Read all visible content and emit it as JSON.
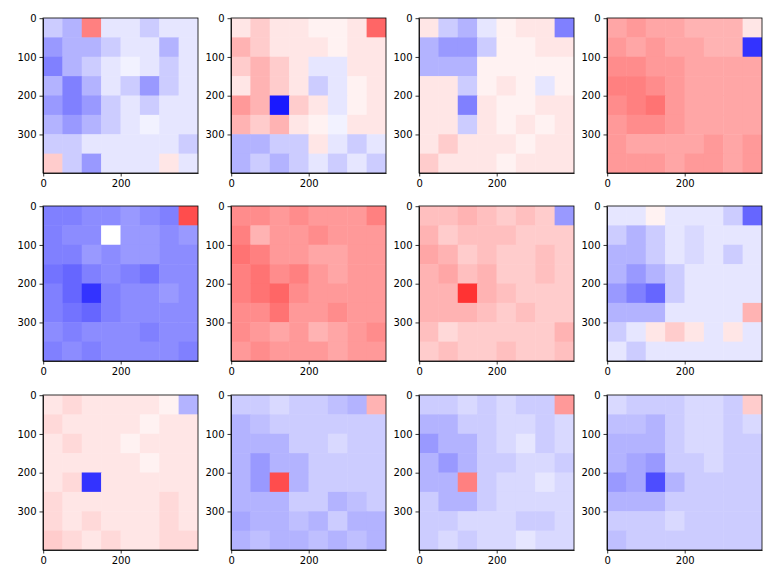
{
  "chart_data": [
    {
      "type": "heatmap",
      "xlim": [
        -0.5,
        399.5
      ],
      "ylim": [
        399.5,
        -0.5
      ],
      "xticks": [
        0,
        200
      ],
      "yticks": [
        0,
        100,
        200,
        300
      ],
      "zlim": [
        -1,
        1
      ],
      "cells": [
        [
          -0.2,
          -0.3,
          0.5,
          -0.1,
          -0.1,
          -0.2,
          -0.1,
          -0.1
        ],
        [
          -0.4,
          -0.3,
          -0.3,
          -0.2,
          -0.1,
          -0.1,
          -0.3,
          -0.1
        ],
        [
          -0.5,
          -0.3,
          -0.2,
          -0.1,
          -0.05,
          -0.1,
          -0.2,
          -0.1
        ],
        [
          -0.3,
          -0.5,
          -0.3,
          -0.1,
          -0.2,
          -0.4,
          -0.2,
          -0.1
        ],
        [
          -0.4,
          -0.5,
          -0.4,
          -0.2,
          -0.1,
          -0.2,
          -0.1,
          -0.1
        ],
        [
          -0.3,
          -0.4,
          -0.3,
          -0.2,
          -0.1,
          -0.05,
          -0.1,
          -0.1
        ],
        [
          -0.2,
          -0.2,
          -0.1,
          -0.1,
          -0.1,
          -0.1,
          -0.1,
          -0.2
        ],
        [
          0.2,
          -0.2,
          -0.4,
          -0.1,
          -0.1,
          -0.1,
          0.1,
          -0.1
        ]
      ]
    },
    {
      "type": "heatmap",
      "xlim": [
        -0.5,
        399.5
      ],
      "ylim": [
        399.5,
        -0.5
      ],
      "xticks": [
        0,
        200
      ],
      "yticks": [
        0,
        100,
        200,
        300
      ],
      "zlim": [
        -1,
        1
      ],
      "cells": [
        [
          0.1,
          0.2,
          0.1,
          0.1,
          0.05,
          0.05,
          0.1,
          0.6
        ],
        [
          0.3,
          0.2,
          0.1,
          0.1,
          0.1,
          0.05,
          0.1,
          0.1
        ],
        [
          0.2,
          0.3,
          0.2,
          0.1,
          -0.1,
          -0.1,
          0.1,
          0.1
        ],
        [
          0.1,
          0.3,
          0.2,
          0.1,
          -0.2,
          -0.1,
          0.05,
          0.1
        ],
        [
          0.4,
          0.3,
          -0.9,
          0.2,
          0.1,
          -0.1,
          0.05,
          0.1
        ],
        [
          0.3,
          0.2,
          0.3,
          0.1,
          0.05,
          -0.05,
          0.1,
          0.1
        ],
        [
          -0.3,
          -0.3,
          -0.2,
          -0.2,
          0.1,
          -0.1,
          -0.2,
          -0.1
        ],
        [
          -0.3,
          -0.2,
          -0.3,
          -0.2,
          -0.1,
          -0.2,
          -0.1,
          -0.2
        ]
      ]
    },
    {
      "type": "heatmap",
      "xlim": [
        -0.5,
        399.5
      ],
      "ylim": [
        399.5,
        -0.5
      ],
      "xticks": [
        0,
        200
      ],
      "yticks": [
        0,
        100,
        200,
        300
      ],
      "zlim": [
        -1,
        1
      ],
      "cells": [
        [
          0.1,
          -0.2,
          -0.3,
          -0.1,
          0.05,
          0.1,
          0.1,
          -0.5
        ],
        [
          -0.3,
          -0.4,
          -0.4,
          -0.2,
          0.05,
          0.05,
          0.1,
          0.1
        ],
        [
          -0.3,
          -0.3,
          -0.3,
          0.05,
          0.05,
          0.05,
          0.05,
          0.05
        ],
        [
          0.1,
          0.1,
          -0.2,
          0.05,
          0.1,
          0.05,
          -0.1,
          0.05
        ],
        [
          0.1,
          0.1,
          -0.5,
          0.1,
          0.05,
          0.05,
          0.1,
          0.1
        ],
        [
          0.1,
          0.1,
          -0.2,
          0.1,
          0.05,
          0.1,
          0.05,
          0.1
        ],
        [
          0.1,
          0.2,
          0.1,
          0.1,
          0.1,
          0.05,
          0.1,
          0.1
        ],
        [
          0.2,
          0.1,
          0.1,
          0.1,
          0.05,
          0.1,
          0.1,
          0.1
        ]
      ]
    },
    {
      "type": "heatmap",
      "xlim": [
        -0.5,
        399.5
      ],
      "ylim": [
        399.5,
        -0.5
      ],
      "xticks": [
        0,
        200
      ],
      "yticks": [
        0,
        100,
        200,
        300
      ],
      "zlim": [
        -1,
        1
      ],
      "cells": [
        [
          0.35,
          0.4,
          0.35,
          0.35,
          0.3,
          0.3,
          0.3,
          0.1
        ],
        [
          0.4,
          0.35,
          0.4,
          0.35,
          0.35,
          0.3,
          0.3,
          -0.8
        ],
        [
          0.45,
          0.45,
          0.4,
          0.4,
          0.35,
          0.35,
          0.35,
          0.35
        ],
        [
          0.5,
          0.5,
          0.45,
          0.4,
          0.35,
          0.35,
          0.35,
          0.35
        ],
        [
          0.45,
          0.5,
          0.55,
          0.4,
          0.35,
          0.35,
          0.35,
          0.35
        ],
        [
          0.4,
          0.45,
          0.45,
          0.4,
          0.35,
          0.35,
          0.35,
          0.35
        ],
        [
          0.4,
          0.35,
          0.35,
          0.35,
          0.35,
          0.4,
          0.35,
          0.4
        ],
        [
          0.4,
          0.4,
          0.4,
          0.35,
          0.4,
          0.4,
          0.35,
          0.4
        ]
      ]
    },
    {
      "type": "heatmap",
      "xlim": [
        -0.5,
        399.5
      ],
      "ylim": [
        399.5,
        -0.5
      ],
      "xticks": [
        0,
        200
      ],
      "yticks": [
        0,
        100,
        200,
        300
      ],
      "zlim": [
        -1,
        1
      ],
      "cells": [
        [
          -0.5,
          -0.5,
          -0.45,
          -0.45,
          -0.4,
          -0.45,
          -0.5,
          0.7
        ],
        [
          -0.5,
          -0.45,
          -0.45,
          0.0,
          -0.4,
          -0.4,
          -0.45,
          -0.4
        ],
        [
          -0.5,
          -0.5,
          -0.4,
          -0.45,
          -0.4,
          -0.4,
          -0.45,
          -0.45
        ],
        [
          -0.55,
          -0.6,
          -0.5,
          -0.45,
          -0.5,
          -0.55,
          -0.45,
          -0.45
        ],
        [
          -0.5,
          -0.6,
          -0.8,
          -0.5,
          -0.45,
          -0.45,
          -0.4,
          -0.45
        ],
        [
          -0.5,
          -0.55,
          -0.6,
          -0.5,
          -0.45,
          -0.45,
          -0.45,
          -0.45
        ],
        [
          -0.45,
          -0.5,
          -0.45,
          -0.45,
          -0.45,
          -0.5,
          -0.45,
          -0.45
        ],
        [
          -0.5,
          -0.45,
          -0.5,
          -0.45,
          -0.45,
          -0.45,
          -0.45,
          -0.5
        ]
      ]
    },
    {
      "type": "heatmap",
      "xlim": [
        -0.5,
        399.5
      ],
      "ylim": [
        399.5,
        -0.5
      ],
      "xticks": [
        0,
        200
      ],
      "yticks": [
        0,
        100,
        200,
        300
      ],
      "zlim": [
        -1,
        1
      ],
      "cells": [
        [
          0.45,
          0.45,
          0.4,
          0.45,
          0.4,
          0.4,
          0.4,
          0.5
        ],
        [
          0.5,
          0.3,
          0.4,
          0.4,
          0.45,
          0.4,
          0.4,
          0.4
        ],
        [
          0.55,
          0.5,
          0.4,
          0.4,
          0.35,
          0.35,
          0.4,
          0.4
        ],
        [
          0.5,
          0.55,
          0.45,
          0.5,
          0.4,
          0.35,
          0.4,
          0.4
        ],
        [
          0.5,
          0.55,
          0.6,
          0.45,
          0.4,
          0.4,
          0.4,
          0.4
        ],
        [
          0.45,
          0.45,
          0.55,
          0.4,
          0.4,
          0.45,
          0.4,
          0.4
        ],
        [
          0.45,
          0.4,
          0.35,
          0.4,
          0.3,
          0.35,
          0.4,
          0.45
        ],
        [
          0.4,
          0.45,
          0.4,
          0.4,
          0.4,
          0.35,
          0.4,
          0.4
        ]
      ]
    },
    {
      "type": "heatmap",
      "xlim": [
        -0.5,
        399.5
      ],
      "ylim": [
        399.5,
        -0.5
      ],
      "xticks": [
        0,
        200
      ],
      "yticks": [
        0,
        100,
        200,
        300
      ],
      "zlim": [
        -1,
        1
      ],
      "cells": [
        [
          0.25,
          0.25,
          0.3,
          0.25,
          0.2,
          0.25,
          0.2,
          -0.4
        ],
        [
          0.3,
          0.2,
          0.25,
          0.25,
          0.25,
          0.2,
          0.2,
          0.2
        ],
        [
          0.35,
          0.3,
          0.2,
          0.25,
          0.2,
          0.2,
          0.25,
          0.2
        ],
        [
          0.3,
          0.35,
          0.25,
          0.3,
          0.2,
          0.2,
          0.25,
          0.2
        ],
        [
          0.3,
          0.3,
          0.8,
          0.3,
          0.25,
          0.2,
          0.2,
          0.2
        ],
        [
          0.3,
          0.3,
          0.3,
          0.25,
          0.2,
          0.25,
          0.2,
          0.2
        ],
        [
          0.25,
          0.15,
          0.2,
          0.2,
          0.2,
          0.2,
          0.2,
          0.3
        ],
        [
          0.2,
          0.25,
          0.2,
          0.2,
          0.25,
          0.2,
          0.2,
          0.25
        ]
      ]
    },
    {
      "type": "heatmap",
      "xlim": [
        -0.5,
        399.5
      ],
      "ylim": [
        399.5,
        -0.5
      ],
      "xticks": [
        0,
        200
      ],
      "yticks": [
        0,
        100,
        200,
        300
      ],
      "zlim": [
        -1,
        1
      ],
      "cells": [
        [
          -0.1,
          -0.1,
          0.05,
          -0.1,
          -0.1,
          -0.1,
          -0.2,
          -0.6
        ],
        [
          -0.2,
          -0.3,
          -0.2,
          -0.1,
          -0.15,
          -0.1,
          -0.1,
          -0.1
        ],
        [
          -0.3,
          -0.3,
          -0.2,
          -0.1,
          -0.15,
          -0.1,
          -0.2,
          -0.1
        ],
        [
          -0.3,
          -0.4,
          -0.3,
          -0.2,
          -0.1,
          -0.1,
          -0.1,
          -0.1
        ],
        [
          -0.4,
          -0.5,
          -0.6,
          -0.2,
          -0.1,
          -0.1,
          -0.1,
          -0.1
        ],
        [
          -0.3,
          -0.3,
          -0.3,
          -0.1,
          -0.1,
          -0.1,
          -0.1,
          0.3
        ],
        [
          -0.2,
          -0.1,
          0.1,
          0.2,
          0.1,
          -0.1,
          0.1,
          -0.1
        ],
        [
          -0.1,
          -0.2,
          -0.1,
          -0.1,
          -0.1,
          -0.1,
          -0.1,
          -0.1
        ]
      ]
    },
    {
      "type": "heatmap",
      "xlim": [
        -0.5,
        399.5
      ],
      "ylim": [
        399.5,
        -0.5
      ],
      "xticks": [
        0,
        200
      ],
      "yticks": [
        0,
        100,
        200,
        300
      ],
      "zlim": [
        -1,
        1
      ],
      "cells": [
        [
          0.1,
          0.15,
          0.1,
          0.1,
          0.1,
          0.1,
          0.05,
          -0.3
        ],
        [
          0.15,
          0.1,
          0.1,
          0.1,
          0.1,
          0.05,
          0.1,
          0.1
        ],
        [
          0.1,
          0.15,
          0.1,
          0.1,
          0.05,
          0.1,
          0.1,
          0.1
        ],
        [
          0.1,
          0.1,
          0.1,
          0.1,
          0.1,
          0.05,
          0.1,
          0.1
        ],
        [
          0.1,
          0.15,
          -0.8,
          0.1,
          0.1,
          0.1,
          0.1,
          0.1
        ],
        [
          0.15,
          0.1,
          0.1,
          0.1,
          0.1,
          0.1,
          0.15,
          0.1
        ],
        [
          0.15,
          0.1,
          0.15,
          0.1,
          0.1,
          0.1,
          0.15,
          0.1
        ],
        [
          0.2,
          0.15,
          0.1,
          0.15,
          0.1,
          0.1,
          0.15,
          0.15
        ]
      ]
    },
    {
      "type": "heatmap",
      "xlim": [
        -0.5,
        399.5
      ],
      "ylim": [
        399.5,
        -0.5
      ],
      "xticks": [
        0,
        200
      ],
      "yticks": [
        0,
        100,
        200,
        300
      ],
      "zlim": [
        -1,
        1
      ],
      "cells": [
        [
          -0.2,
          -0.2,
          -0.15,
          -0.2,
          -0.2,
          -0.25,
          -0.3,
          0.3
        ],
        [
          -0.3,
          -0.25,
          -0.2,
          -0.2,
          -0.2,
          -0.2,
          -0.2,
          -0.2
        ],
        [
          -0.3,
          -0.3,
          -0.3,
          -0.2,
          -0.2,
          -0.15,
          -0.2,
          -0.2
        ],
        [
          -0.3,
          -0.4,
          -0.3,
          -0.3,
          -0.2,
          -0.2,
          -0.2,
          -0.2
        ],
        [
          -0.3,
          -0.4,
          0.7,
          -0.3,
          -0.2,
          -0.2,
          -0.2,
          -0.2
        ],
        [
          -0.3,
          -0.3,
          -0.3,
          -0.2,
          -0.2,
          -0.3,
          -0.25,
          -0.2
        ],
        [
          -0.35,
          -0.3,
          -0.3,
          -0.25,
          -0.3,
          -0.2,
          -0.3,
          -0.3
        ],
        [
          -0.3,
          -0.25,
          -0.3,
          -0.3,
          -0.25,
          -0.3,
          -0.25,
          -0.3
        ]
      ]
    },
    {
      "type": "heatmap",
      "xlim": [
        -0.5,
        399.5
      ],
      "ylim": [
        399.5,
        -0.5
      ],
      "xticks": [
        0,
        200
      ],
      "yticks": [
        0,
        100,
        200,
        300
      ],
      "zlim": [
        -1,
        1
      ],
      "cells": [
        [
          -0.2,
          -0.2,
          -0.15,
          -0.2,
          -0.15,
          -0.2,
          -0.2,
          0.4
        ],
        [
          -0.3,
          -0.3,
          -0.2,
          -0.2,
          -0.15,
          -0.15,
          -0.2,
          -0.15
        ],
        [
          -0.4,
          -0.3,
          -0.3,
          -0.2,
          -0.15,
          -0.1,
          -0.2,
          -0.15
        ],
        [
          -0.3,
          -0.4,
          -0.3,
          -0.2,
          -0.2,
          -0.15,
          -0.15,
          -0.2
        ],
        [
          -0.3,
          -0.3,
          0.5,
          -0.2,
          -0.15,
          -0.15,
          -0.1,
          -0.15
        ],
        [
          -0.2,
          -0.3,
          -0.3,
          -0.2,
          -0.15,
          -0.15,
          -0.15,
          -0.15
        ],
        [
          -0.2,
          -0.2,
          -0.15,
          -0.15,
          -0.15,
          -0.2,
          -0.2,
          -0.15
        ],
        [
          -0.2,
          -0.15,
          -0.2,
          -0.15,
          -0.15,
          -0.1,
          -0.15,
          -0.15
        ]
      ]
    },
    {
      "type": "heatmap",
      "xlim": [
        -0.5,
        399.5
      ],
      "ylim": [
        399.5,
        -0.5
      ],
      "xticks": [
        0,
        200
      ],
      "yticks": [
        0,
        100,
        200,
        300
      ],
      "zlim": [
        -1,
        1
      ],
      "cells": [
        [
          -0.15,
          -0.2,
          -0.2,
          -0.2,
          -0.15,
          -0.15,
          -0.2,
          0.2
        ],
        [
          -0.25,
          -0.25,
          -0.3,
          -0.2,
          -0.15,
          -0.15,
          -0.2,
          -0.15
        ],
        [
          -0.3,
          -0.3,
          -0.3,
          -0.2,
          -0.15,
          -0.15,
          -0.2,
          -0.2
        ],
        [
          -0.3,
          -0.35,
          -0.4,
          -0.2,
          -0.2,
          -0.15,
          -0.2,
          -0.2
        ],
        [
          -0.4,
          -0.35,
          -0.7,
          -0.3,
          -0.2,
          -0.2,
          -0.2,
          -0.2
        ],
        [
          -0.3,
          -0.3,
          -0.3,
          -0.2,
          -0.2,
          -0.2,
          -0.2,
          -0.2
        ],
        [
          -0.2,
          -0.2,
          -0.2,
          -0.15,
          -0.2,
          -0.2,
          -0.2,
          -0.2
        ],
        [
          -0.25,
          -0.2,
          -0.2,
          -0.2,
          -0.2,
          -0.2,
          -0.2,
          -0.2
        ]
      ]
    }
  ]
}
